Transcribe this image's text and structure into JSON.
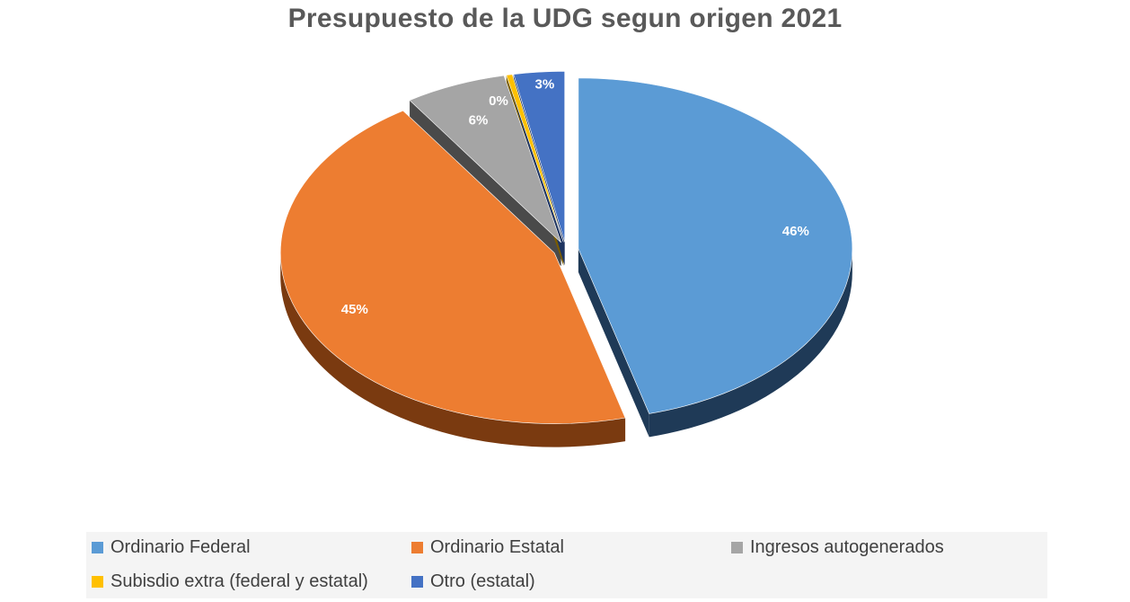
{
  "chart_data": {
    "type": "pie",
    "title": "Presupuesto de la UDG segun origen  2021",
    "slices": [
      {
        "name": "Ordinario Federal",
        "value": 46,
        "label": "46%",
        "color": "#5b9bd5",
        "side": "#1f3a57"
      },
      {
        "name": "Ordinario Estatal",
        "value": 45,
        "label": "45%",
        "color": "#ed7d31",
        "side": "#7a3a10"
      },
      {
        "name": "Ingresos autogenerados",
        "value": 6,
        "label": "6%",
        "color": "#a5a5a5",
        "side": "#4a4a4a"
      },
      {
        "name": "Subisdio extra (federal y estatal)",
        "value": 0,
        "label": "0%",
        "color": "#ffc000",
        "side": "#7a5c00"
      },
      {
        "name": "Otro (estatal)",
        "value": 3,
        "label": "3%",
        "color": "#4472c4",
        "side": "#1e3460"
      }
    ]
  }
}
